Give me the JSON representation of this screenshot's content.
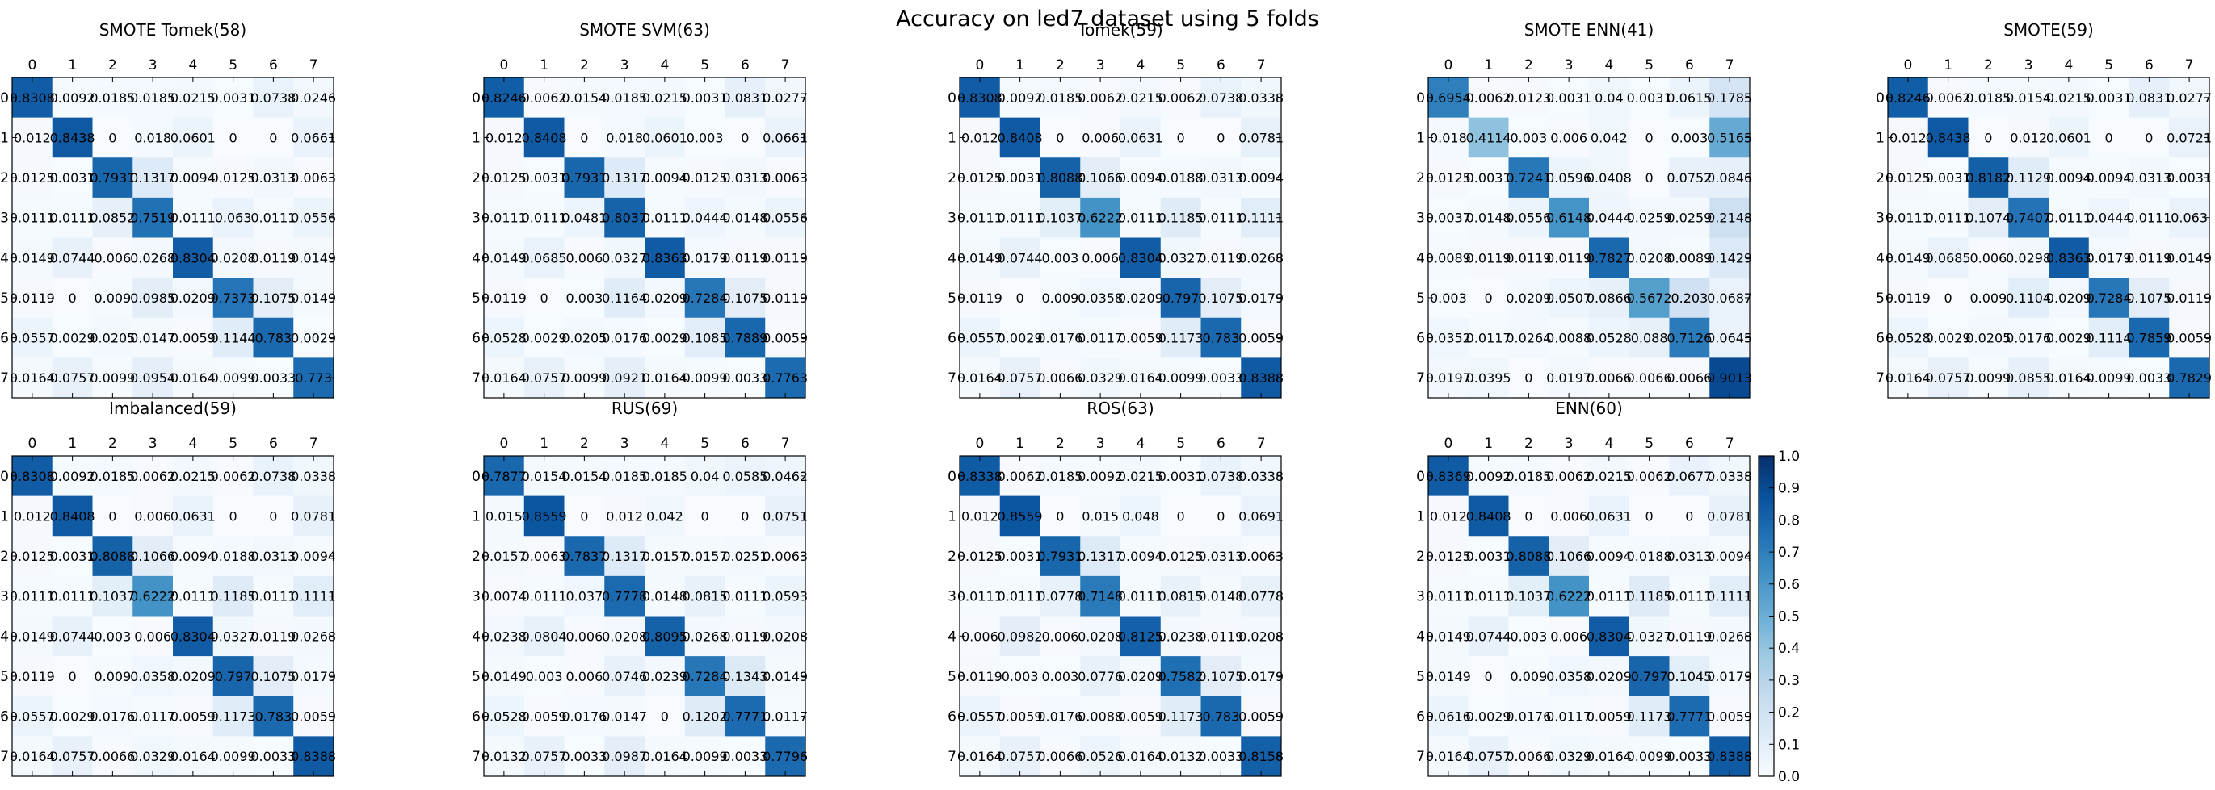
{
  "chart_data": {
    "title": "Accuracy on led7 dataset using 5 folds",
    "type": "heatmap",
    "colormap": "Blues",
    "classes": [
      "0",
      "1",
      "2",
      "3",
      "4",
      "5",
      "6",
      "7"
    ],
    "colorbar": {
      "range": [
        0.0,
        1.0
      ],
      "ticks": [
        "0.0",
        "0.1",
        "0.2",
        "0.3",
        "0.4",
        "0.5",
        "0.6",
        "0.7",
        "0.8",
        "0.9",
        "1.0"
      ]
    },
    "panels": [
      {
        "title": "SMOTE Tomek(58)",
        "matrix": [
          [
            0.8308,
            0.0092,
            0.0185,
            0.0185,
            0.0215,
            0.0031,
            0.0738,
            0.0246
          ],
          [
            0.012,
            0.8438,
            0.0,
            0.018,
            0.0601,
            0.0,
            0.0,
            0.0661
          ],
          [
            0.0125,
            0.0031,
            0.7931,
            0.1317,
            0.0094,
            0.0125,
            0.0313,
            0.0063
          ],
          [
            0.0111,
            0.0111,
            0.0852,
            0.7519,
            0.0111,
            0.063,
            0.0111,
            0.0556
          ],
          [
            0.0149,
            0.0744,
            0.006,
            0.0268,
            0.8304,
            0.0208,
            0.0119,
            0.0149
          ],
          [
            0.0119,
            0.0,
            0.009,
            0.0985,
            0.0209,
            0.7373,
            0.1075,
            0.0149
          ],
          [
            0.0557,
            0.0029,
            0.0205,
            0.0147,
            0.0059,
            0.1144,
            0.783,
            0.0029
          ],
          [
            0.0164,
            0.0757,
            0.0099,
            0.0954,
            0.0164,
            0.0099,
            0.0033,
            0.773
          ]
        ]
      },
      {
        "title": "SMOTE SVM(63)",
        "matrix": [
          [
            0.8246,
            0.0062,
            0.0154,
            0.0185,
            0.0215,
            0.0031,
            0.0831,
            0.0277
          ],
          [
            0.012,
            0.8408,
            0.0,
            0.018,
            0.0601,
            0.003,
            0.0,
            0.0661
          ],
          [
            0.0125,
            0.0031,
            0.7931,
            0.1317,
            0.0094,
            0.0125,
            0.0313,
            0.0063
          ],
          [
            0.0111,
            0.0111,
            0.0481,
            0.8037,
            0.0111,
            0.0444,
            0.0148,
            0.0556
          ],
          [
            0.0149,
            0.0685,
            0.006,
            0.0327,
            0.8363,
            0.0179,
            0.0119,
            0.0119
          ],
          [
            0.0119,
            0.0,
            0.003,
            0.1164,
            0.0209,
            0.7284,
            0.1075,
            0.0119
          ],
          [
            0.0528,
            0.0029,
            0.0205,
            0.0176,
            0.0029,
            0.1085,
            0.7889,
            0.0059
          ],
          [
            0.0164,
            0.0757,
            0.0099,
            0.0921,
            0.0164,
            0.0099,
            0.0033,
            0.7763
          ]
        ]
      },
      {
        "title": "Tomek(59)",
        "matrix": [
          [
            0.8308,
            0.0092,
            0.0185,
            0.0062,
            0.0215,
            0.0062,
            0.0738,
            0.0338
          ],
          [
            0.012,
            0.8408,
            0.0,
            0.006,
            0.0631,
            0.0,
            0.0,
            0.0781
          ],
          [
            0.0125,
            0.0031,
            0.8088,
            0.1066,
            0.0094,
            0.0188,
            0.0313,
            0.0094
          ],
          [
            0.0111,
            0.0111,
            0.1037,
            0.6222,
            0.0111,
            0.1185,
            0.0111,
            0.1111
          ],
          [
            0.0149,
            0.0744,
            0.003,
            0.006,
            0.8304,
            0.0327,
            0.0119,
            0.0268
          ],
          [
            0.0119,
            0.0,
            0.009,
            0.0358,
            0.0209,
            0.797,
            0.1075,
            0.0179
          ],
          [
            0.0557,
            0.0029,
            0.0176,
            0.0117,
            0.0059,
            0.1173,
            0.783,
            0.0059
          ],
          [
            0.0164,
            0.0757,
            0.0066,
            0.0329,
            0.0164,
            0.0099,
            0.0033,
            0.8388
          ]
        ]
      },
      {
        "title": "SMOTE ENN(41)",
        "matrix": [
          [
            0.6954,
            0.0062,
            0.0123,
            0.0031,
            0.04,
            0.0031,
            0.0615,
            0.1785
          ],
          [
            0.018,
            0.4114,
            0.003,
            0.006,
            0.042,
            0.0,
            0.003,
            0.5165
          ],
          [
            0.0125,
            0.0031,
            0.7241,
            0.0596,
            0.0408,
            0.0,
            0.0752,
            0.0846
          ],
          [
            0.0037,
            0.0148,
            0.0556,
            0.6148,
            0.0444,
            0.0259,
            0.0259,
            0.2148
          ],
          [
            0.0089,
            0.0119,
            0.0119,
            0.0119,
            0.7827,
            0.0208,
            0.0089,
            0.1429
          ],
          [
            0.003,
            0.0,
            0.0209,
            0.0507,
            0.0866,
            0.5672,
            0.203,
            0.0687
          ],
          [
            0.0352,
            0.0117,
            0.0264,
            0.0088,
            0.0528,
            0.088,
            0.7126,
            0.0645
          ],
          [
            0.0197,
            0.0395,
            0.0,
            0.0197,
            0.0066,
            0.0066,
            0.0066,
            0.9013
          ]
        ]
      },
      {
        "title": "SMOTE(59)",
        "matrix": [
          [
            0.8246,
            0.0062,
            0.0185,
            0.0154,
            0.0215,
            0.0031,
            0.0831,
            0.0277
          ],
          [
            0.012,
            0.8438,
            0.0,
            0.012,
            0.0601,
            0.0,
            0.0,
            0.0721
          ],
          [
            0.0125,
            0.0031,
            0.8182,
            0.1129,
            0.0094,
            0.0094,
            0.0313,
            0.0031
          ],
          [
            0.0111,
            0.0111,
            0.1074,
            0.7407,
            0.0111,
            0.0444,
            0.0111,
            0.063
          ],
          [
            0.0149,
            0.0685,
            0.006,
            0.0298,
            0.8363,
            0.0179,
            0.0119,
            0.0149
          ],
          [
            0.0119,
            0.0,
            0.009,
            0.1104,
            0.0209,
            0.7284,
            0.1075,
            0.0119
          ],
          [
            0.0528,
            0.0029,
            0.0205,
            0.0176,
            0.0029,
            0.1114,
            0.7859,
            0.0059
          ],
          [
            0.0164,
            0.0757,
            0.0099,
            0.0855,
            0.0164,
            0.0099,
            0.0033,
            0.7829
          ]
        ]
      },
      {
        "title": "Imbalanced(59)",
        "matrix": [
          [
            0.8308,
            0.0092,
            0.0185,
            0.0062,
            0.0215,
            0.0062,
            0.0738,
            0.0338
          ],
          [
            0.012,
            0.8408,
            0.0,
            0.006,
            0.0631,
            0.0,
            0.0,
            0.0781
          ],
          [
            0.0125,
            0.0031,
            0.8088,
            0.1066,
            0.0094,
            0.0188,
            0.0313,
            0.0094
          ],
          [
            0.0111,
            0.0111,
            0.1037,
            0.6222,
            0.0111,
            0.1185,
            0.0111,
            0.1111
          ],
          [
            0.0149,
            0.0744,
            0.003,
            0.006,
            0.8304,
            0.0327,
            0.0119,
            0.0268
          ],
          [
            0.0119,
            0.0,
            0.009,
            0.0358,
            0.0209,
            0.797,
            0.1075,
            0.0179
          ],
          [
            0.0557,
            0.0029,
            0.0176,
            0.0117,
            0.0059,
            0.1173,
            0.783,
            0.0059
          ],
          [
            0.0164,
            0.0757,
            0.0066,
            0.0329,
            0.0164,
            0.0099,
            0.0033,
            0.8388
          ]
        ]
      },
      {
        "title": "RUS(69)",
        "matrix": [
          [
            0.7877,
            0.0154,
            0.0154,
            0.0185,
            0.0185,
            0.04,
            0.0585,
            0.0462
          ],
          [
            0.015,
            0.8559,
            0.0,
            0.012,
            0.042,
            0.0,
            0.0,
            0.0751
          ],
          [
            0.0157,
            0.0063,
            0.7837,
            0.1317,
            0.0157,
            0.0157,
            0.0251,
            0.0063
          ],
          [
            0.0074,
            0.0111,
            0.037,
            0.7778,
            0.0148,
            0.0815,
            0.0111,
            0.0593
          ],
          [
            0.0238,
            0.0804,
            0.006,
            0.0208,
            0.8095,
            0.0268,
            0.0119,
            0.0208
          ],
          [
            0.0149,
            0.003,
            0.006,
            0.0746,
            0.0239,
            0.7284,
            0.1343,
            0.0149
          ],
          [
            0.0528,
            0.0059,
            0.0176,
            0.0147,
            0.0,
            0.1202,
            0.7771,
            0.0117
          ],
          [
            0.0132,
            0.0757,
            0.0033,
            0.0987,
            0.0164,
            0.0099,
            0.0033,
            0.7796
          ]
        ]
      },
      {
        "title": "ROS(63)",
        "matrix": [
          [
            0.8338,
            0.0062,
            0.0185,
            0.0092,
            0.0215,
            0.0031,
            0.0738,
            0.0338
          ],
          [
            0.012,
            0.8559,
            0.0,
            0.015,
            0.048,
            0.0,
            0.0,
            0.0691
          ],
          [
            0.0125,
            0.0031,
            0.7931,
            0.1317,
            0.0094,
            0.0125,
            0.0313,
            0.0063
          ],
          [
            0.0111,
            0.0111,
            0.0778,
            0.7148,
            0.0111,
            0.0815,
            0.0148,
            0.0778
          ],
          [
            0.006,
            0.0982,
            0.006,
            0.0208,
            0.8125,
            0.0238,
            0.0119,
            0.0208
          ],
          [
            0.0119,
            0.003,
            0.003,
            0.0776,
            0.0209,
            0.7582,
            0.1075,
            0.0179
          ],
          [
            0.0557,
            0.0059,
            0.0176,
            0.0088,
            0.0059,
            0.1173,
            0.783,
            0.0059
          ],
          [
            0.0164,
            0.0757,
            0.0066,
            0.0526,
            0.0164,
            0.0132,
            0.0033,
            0.8158
          ]
        ]
      },
      {
        "title": "ENN(60)",
        "matrix": [
          [
            0.8369,
            0.0092,
            0.0185,
            0.0062,
            0.0215,
            0.0062,
            0.0677,
            0.0338
          ],
          [
            0.012,
            0.8408,
            0.0,
            0.006,
            0.0631,
            0.0,
            0.0,
            0.0781
          ],
          [
            0.0125,
            0.0031,
            0.8088,
            0.1066,
            0.0094,
            0.0188,
            0.0313,
            0.0094
          ],
          [
            0.0111,
            0.0111,
            0.1037,
            0.6222,
            0.0111,
            0.1185,
            0.0111,
            0.1111
          ],
          [
            0.0149,
            0.0744,
            0.003,
            0.006,
            0.8304,
            0.0327,
            0.0119,
            0.0268
          ],
          [
            0.0149,
            0.0,
            0.009,
            0.0358,
            0.0209,
            0.797,
            0.1045,
            0.0179
          ],
          [
            0.0616,
            0.0029,
            0.0176,
            0.0117,
            0.0059,
            0.1173,
            0.7771,
            0.0059
          ],
          [
            0.0164,
            0.0757,
            0.0066,
            0.0329,
            0.0164,
            0.0099,
            0.0033,
            0.8388
          ]
        ]
      }
    ]
  }
}
